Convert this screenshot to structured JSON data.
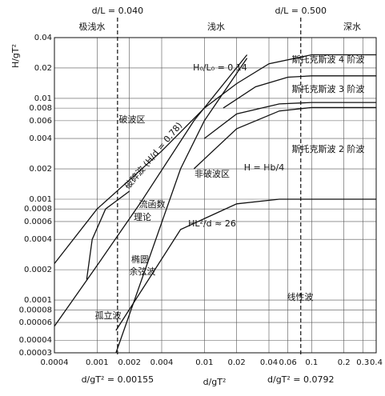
{
  "chart_data": {
    "type": "line",
    "x_label": "d/gT²",
    "y_label": "H/gT²",
    "log_x": true,
    "log_y": true,
    "grid": true,
    "xlim": [
      0.0004,
      0.4
    ],
    "ylim": [
      3e-05,
      0.04
    ],
    "xticks": [
      0.0004,
      0.001,
      0.002,
      0.004,
      0.01,
      0.02,
      0.04,
      0.06,
      0.1,
      0.2,
      0.3,
      0.4
    ],
    "yticks": [
      3e-05,
      4e-05,
      6e-05,
      8e-05,
      0.0001,
      0.0002,
      0.0004,
      0.0006,
      0.0008,
      0.001,
      0.002,
      0.004,
      0.006,
      0.008,
      0.01,
      0.02,
      0.04
    ],
    "vlines": [
      {
        "x": 0.00155,
        "label": "d/gT² = 0.00155",
        "top_label": "d/L = 0.040"
      },
      {
        "x": 0.0792,
        "label": "d/gT² = 0.0792",
        "top_label": "d/L = 0.500"
      }
    ],
    "series": [
      {
        "color": "#111111",
        "x": [
          0.0004,
          0.001,
          0.004,
          0.01,
          0.02,
          0.04,
          0.1,
          0.4
        ],
        "values": [
          0.00023,
          0.0008,
          0.003,
          0.008,
          0.014,
          0.022,
          0.027,
          0.027
        ]
      },
      {
        "color": "#111111",
        "x": [
          0.0004,
          0.001,
          0.0025,
          0.008,
          0.025
        ],
        "values": [
          5.5e-05,
          0.00022,
          0.0009,
          0.006,
          0.027
        ]
      },
      {
        "color": "#111111",
        "x": [
          0.0008,
          0.0009,
          0.0012,
          0.002
        ],
        "values": [
          0.00016,
          0.0004,
          0.0008,
          0.0012
        ]
      },
      {
        "color": "#111111",
        "x": [
          0.0015,
          0.006,
          0.01,
          0.025
        ],
        "values": [
          3e-05,
          0.002,
          0.006,
          0.025
        ]
      },
      {
        "color": "#111111",
        "x": [
          0.0015,
          0.006,
          0.02,
          0.05,
          0.4
        ],
        "values": [
          5e-05,
          0.0005,
          0.0009,
          0.001,
          0.001
        ]
      },
      {
        "color": "#111111",
        "x": [
          0.008,
          0.02,
          0.05,
          0.1,
          0.4
        ],
        "values": [
          0.002,
          0.005,
          0.0075,
          0.0081,
          0.0081
        ]
      },
      {
        "color": "#111111",
        "x": [
          0.01,
          0.02,
          0.05,
          0.1,
          0.4
        ],
        "values": [
          0.004,
          0.007,
          0.0088,
          0.0091,
          0.0091
        ]
      },
      {
        "color": "#111111",
        "x": [
          0.015,
          0.03,
          0.06,
          0.1,
          0.4
        ],
        "values": [
          0.008,
          0.013,
          0.0162,
          0.0167,
          0.0167
        ]
      }
    ],
    "annotations": [
      "极浅水",
      "浅水",
      "深水",
      "H₀/L₀ = 0.14",
      "斯托克斯波 4 阶波",
      "斯托克斯波 3 阶波",
      "斯托克斯波 2 阶波",
      "破波区",
      "破碎波 (H/d = 0.78)",
      "H = Hb/4",
      "非破波区",
      "流函数",
      "理论",
      "HL²/d ≈ 26",
      "椭圆",
      "余弦波",
      "孤立波",
      "线性波"
    ]
  }
}
